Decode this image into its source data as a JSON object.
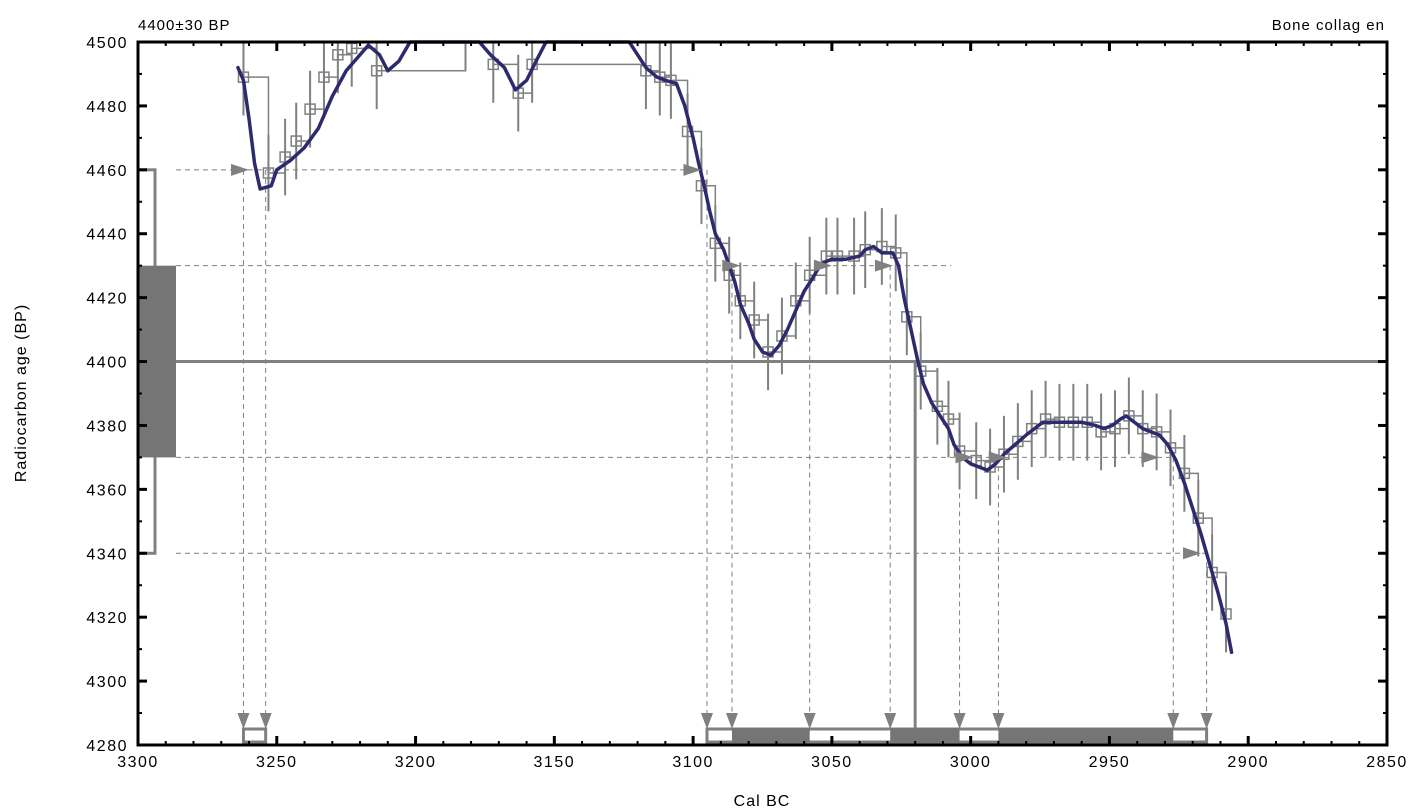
{
  "chart_data": {
    "type": "line",
    "title_left": "4400±30 BP",
    "title_right": "Bone collag en",
    "xlabel": "Cal BC",
    "ylabel": "Radiocarbon age (BP)",
    "xlim": [
      3300,
      2850
    ],
    "ylim": [
      4280,
      4500
    ],
    "x_ticks": [
      3300,
      3250,
      3200,
      3150,
      3100,
      3050,
      3000,
      2950,
      2900,
      2850
    ],
    "y_ticks": [
      4280,
      4300,
      4320,
      4340,
      4360,
      4380,
      4400,
      4420,
      4440,
      4460,
      4480,
      4500
    ],
    "x_tick_labels": [
      "3300",
      "3250",
      "3200",
      "3150",
      "3100",
      "3050",
      "3000",
      "2950",
      "2900",
      "2850"
    ],
    "y_tick_labels": [
      "4280",
      "4300",
      "4320",
      "4340",
      "4360",
      "4380",
      "4400",
      "4420",
      "4440",
      "4460",
      "4480",
      "4500"
    ],
    "measured_age": 4400,
    "measured_error": 30,
    "one_sigma_range": [
      4370,
      4430
    ],
    "two_sigma_range": [
      4340,
      4460
    ],
    "curve_color": "#2e2a6e",
    "data_color": "#808080",
    "fill_color": "#757575",
    "calibration_curve": [
      [
        3264,
        4492
      ],
      [
        3262,
        4488
      ],
      [
        3260,
        4476
      ],
      [
        3258,
        4462
      ],
      [
        3256,
        4454
      ],
      [
        3252,
        4455
      ],
      [
        3250,
        4460
      ],
      [
        3245,
        4463
      ],
      [
        3240,
        4467
      ],
      [
        3235,
        4473
      ],
      [
        3230,
        4483
      ],
      [
        3225,
        4491
      ],
      [
        3220,
        4496
      ],
      [
        3217,
        4499
      ],
      [
        3213,
        4496
      ],
      [
        3210,
        4491
      ],
      [
        3206,
        4494
      ],
      [
        3202,
        4500
      ],
      [
        3177,
        4500
      ],
      [
        3173,
        4496
      ],
      [
        3168,
        4492
      ],
      [
        3164,
        4485
      ],
      [
        3160,
        4488
      ],
      [
        3156,
        4495
      ],
      [
        3153,
        4500
      ],
      [
        3123,
        4500
      ],
      [
        3120,
        4496
      ],
      [
        3117,
        4492
      ],
      [
        3113,
        4489
      ],
      [
        3110,
        4488
      ],
      [
        3106,
        4487
      ],
      [
        3103,
        4480
      ],
      [
        3100,
        4470
      ],
      [
        3098,
        4462
      ],
      [
        3096,
        4455
      ],
      [
        3094,
        4447
      ],
      [
        3092,
        4440
      ],
      [
        3089,
        4435
      ],
      [
        3087,
        4430
      ],
      [
        3085,
        4425
      ],
      [
        3083,
        4418
      ],
      [
        3080,
        4412
      ],
      [
        3078,
        4407
      ],
      [
        3075,
        4403
      ],
      [
        3072,
        4402
      ],
      [
        3069,
        4405
      ],
      [
        3066,
        4410
      ],
      [
        3063,
        4416
      ],
      [
        3060,
        4422
      ],
      [
        3057,
        4426
      ],
      [
        3055,
        4429
      ],
      [
        3053,
        4431
      ],
      [
        3050,
        4432
      ],
      [
        3045,
        4432
      ],
      [
        3040,
        4433
      ],
      [
        3038,
        4435
      ],
      [
        3035,
        4436
      ],
      [
        3032,
        4434
      ],
      [
        3028,
        4434
      ],
      [
        3026,
        4430
      ],
      [
        3024,
        4420
      ],
      [
        3021,
        4408
      ],
      [
        3019,
        4400
      ],
      [
        3017,
        4393
      ],
      [
        3014,
        4387
      ],
      [
        3011,
        4383
      ],
      [
        3008,
        4379
      ],
      [
        3006,
        4374
      ],
      [
        3003,
        4370
      ],
      [
        3000,
        4368
      ],
      [
        2997,
        4367
      ],
      [
        2994,
        4366
      ],
      [
        2991,
        4368
      ],
      [
        2988,
        4371
      ],
      [
        2984,
        4374
      ],
      [
        2980,
        4377
      ],
      [
        2977,
        4379
      ],
      [
        2974,
        4381
      ],
      [
        2970,
        4381
      ],
      [
        2965,
        4381
      ],
      [
        2960,
        4381
      ],
      [
        2955,
        4380
      ],
      [
        2952,
        4379
      ],
      [
        2949,
        4380
      ],
      [
        2946,
        4382
      ],
      [
        2944,
        4383
      ],
      [
        2941,
        4381
      ],
      [
        2938,
        4379
      ],
      [
        2935,
        4378
      ],
      [
        2932,
        4377
      ],
      [
        2929,
        4374
      ],
      [
        2926,
        4369
      ],
      [
        2923,
        4362
      ],
      [
        2920,
        4354
      ],
      [
        2917,
        4346
      ],
      [
        2914,
        4337
      ],
      [
        2911,
        4328
      ],
      [
        2908,
        4318
      ],
      [
        2906,
        4309
      ]
    ],
    "decadal_data": [
      [
        3262,
        4489
      ],
      [
        3253,
        4459
      ],
      [
        3247,
        4464
      ],
      [
        3243,
        4469
      ],
      [
        3238,
        4479
      ],
      [
        3233,
        4489
      ],
      [
        3228,
        4496
      ],
      [
        3223,
        4498
      ],
      [
        3214,
        4491
      ],
      [
        3182,
        4503
      ],
      [
        3172,
        4493
      ],
      [
        3163,
        4484
      ],
      [
        3158,
        4493
      ],
      [
        3117,
        4491
      ],
      [
        3112,
        4489
      ],
      [
        3108,
        4488
      ],
      [
        3102,
        4472
      ],
      [
        3097,
        4455
      ],
      [
        3092,
        4437
      ],
      [
        3087,
        4427
      ],
      [
        3083,
        4419
      ],
      [
        3078,
        4413
      ],
      [
        3073,
        4403
      ],
      [
        3068,
        4408
      ],
      [
        3063,
        4419
      ],
      [
        3058,
        4427
      ],
      [
        3052,
        4433
      ],
      [
        3048,
        4433
      ],
      [
        3042,
        4433
      ],
      [
        3038,
        4435
      ],
      [
        3032,
        4436
      ],
      [
        3027,
        4434
      ],
      [
        3023,
        4414
      ],
      [
        3018,
        4397
      ],
      [
        3012,
        4386
      ],
      [
        3008,
        4382
      ],
      [
        3004,
        4372
      ],
      [
        2998,
        4369
      ],
      [
        2993,
        4367
      ],
      [
        2988,
        4371
      ],
      [
        2983,
        4375
      ],
      [
        2978,
        4379
      ],
      [
        2973,
        4382
      ],
      [
        2968,
        4381
      ],
      [
        2963,
        4381
      ],
      [
        2958,
        4381
      ],
      [
        2953,
        4378
      ],
      [
        2948,
        4379
      ],
      [
        2943,
        4383
      ],
      [
        2938,
        4379
      ],
      [
        2933,
        4378
      ],
      [
        2928,
        4373
      ],
      [
        2923,
        4365
      ],
      [
        2918,
        4351
      ],
      [
        2913,
        4334
      ],
      [
        2908,
        4321
      ]
    ],
    "data_error": 12,
    "calibrated_range_95": [
      [
        3262,
        3254
      ],
      [
        3095,
        2915
      ]
    ],
    "calibrated_range_68": [
      [
        3086,
        3058
      ],
      [
        3029,
        3004
      ],
      [
        2990,
        2927
      ]
    ],
    "intercept_arrows_95": [
      3262,
      3254,
      3095,
      3086,
      3058,
      3029,
      3004,
      2990,
      2927,
      2915
    ],
    "h_arrows": [
      {
        "y": 4460,
        "x": 3260
      },
      {
        "y": 4460,
        "x": 3097
      },
      {
        "y": 4430,
        "x": 3083
      },
      {
        "y": 4430,
        "x": 3050
      },
      {
        "y": 4430,
        "x": 3028
      },
      {
        "y": 4370,
        "x": 2999
      },
      {
        "y": 4370,
        "x": 2987
      },
      {
        "y": 4370,
        "x": 2932
      },
      {
        "y": 4340,
        "x": 2917
      }
    ],
    "probability_x": 3020
  }
}
